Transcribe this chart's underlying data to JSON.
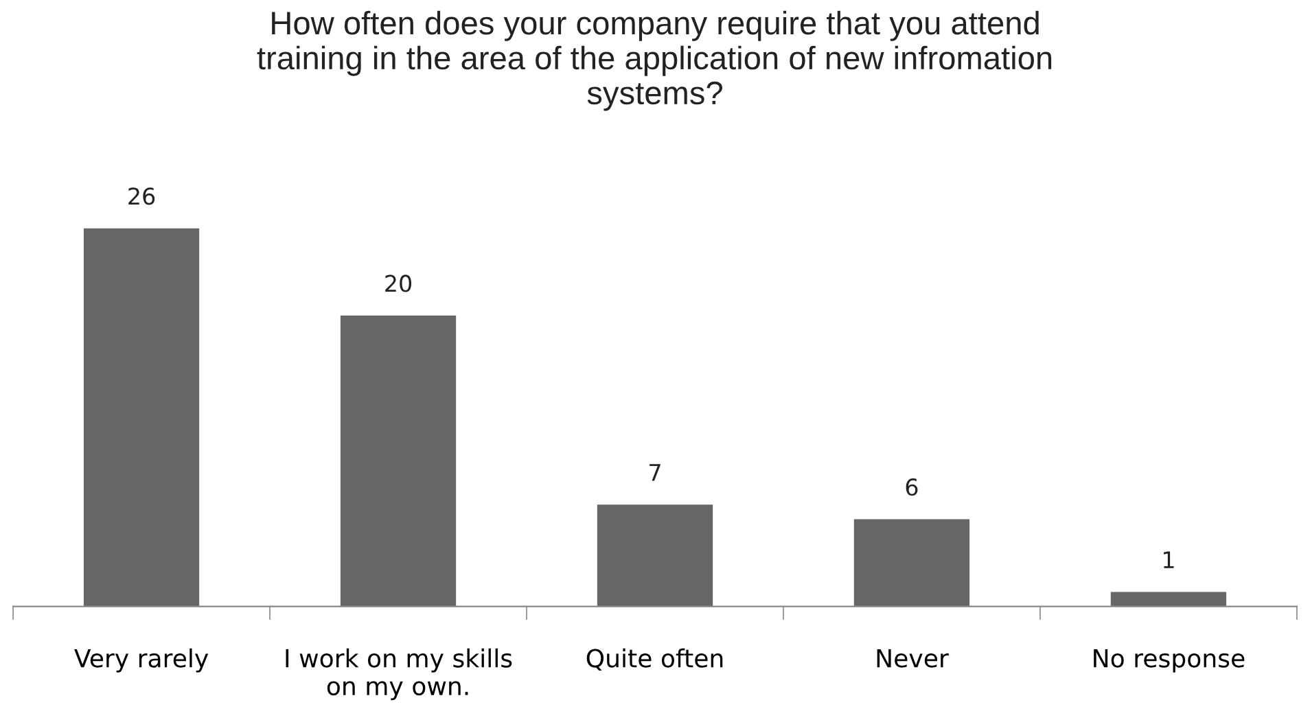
{
  "chart_data": {
    "type": "bar",
    "title": "How often does your company require that you attend\ntraining in the area of the application of new infromation\nsystems?",
    "categories": [
      "Very rarely",
      "I work on my skills\non my own.",
      "Quite often",
      "Never",
      "No response"
    ],
    "values": [
      26,
      20,
      7,
      6,
      1
    ],
    "color": "#666666",
    "data_labels": true,
    "grid": false,
    "legend": false
  }
}
